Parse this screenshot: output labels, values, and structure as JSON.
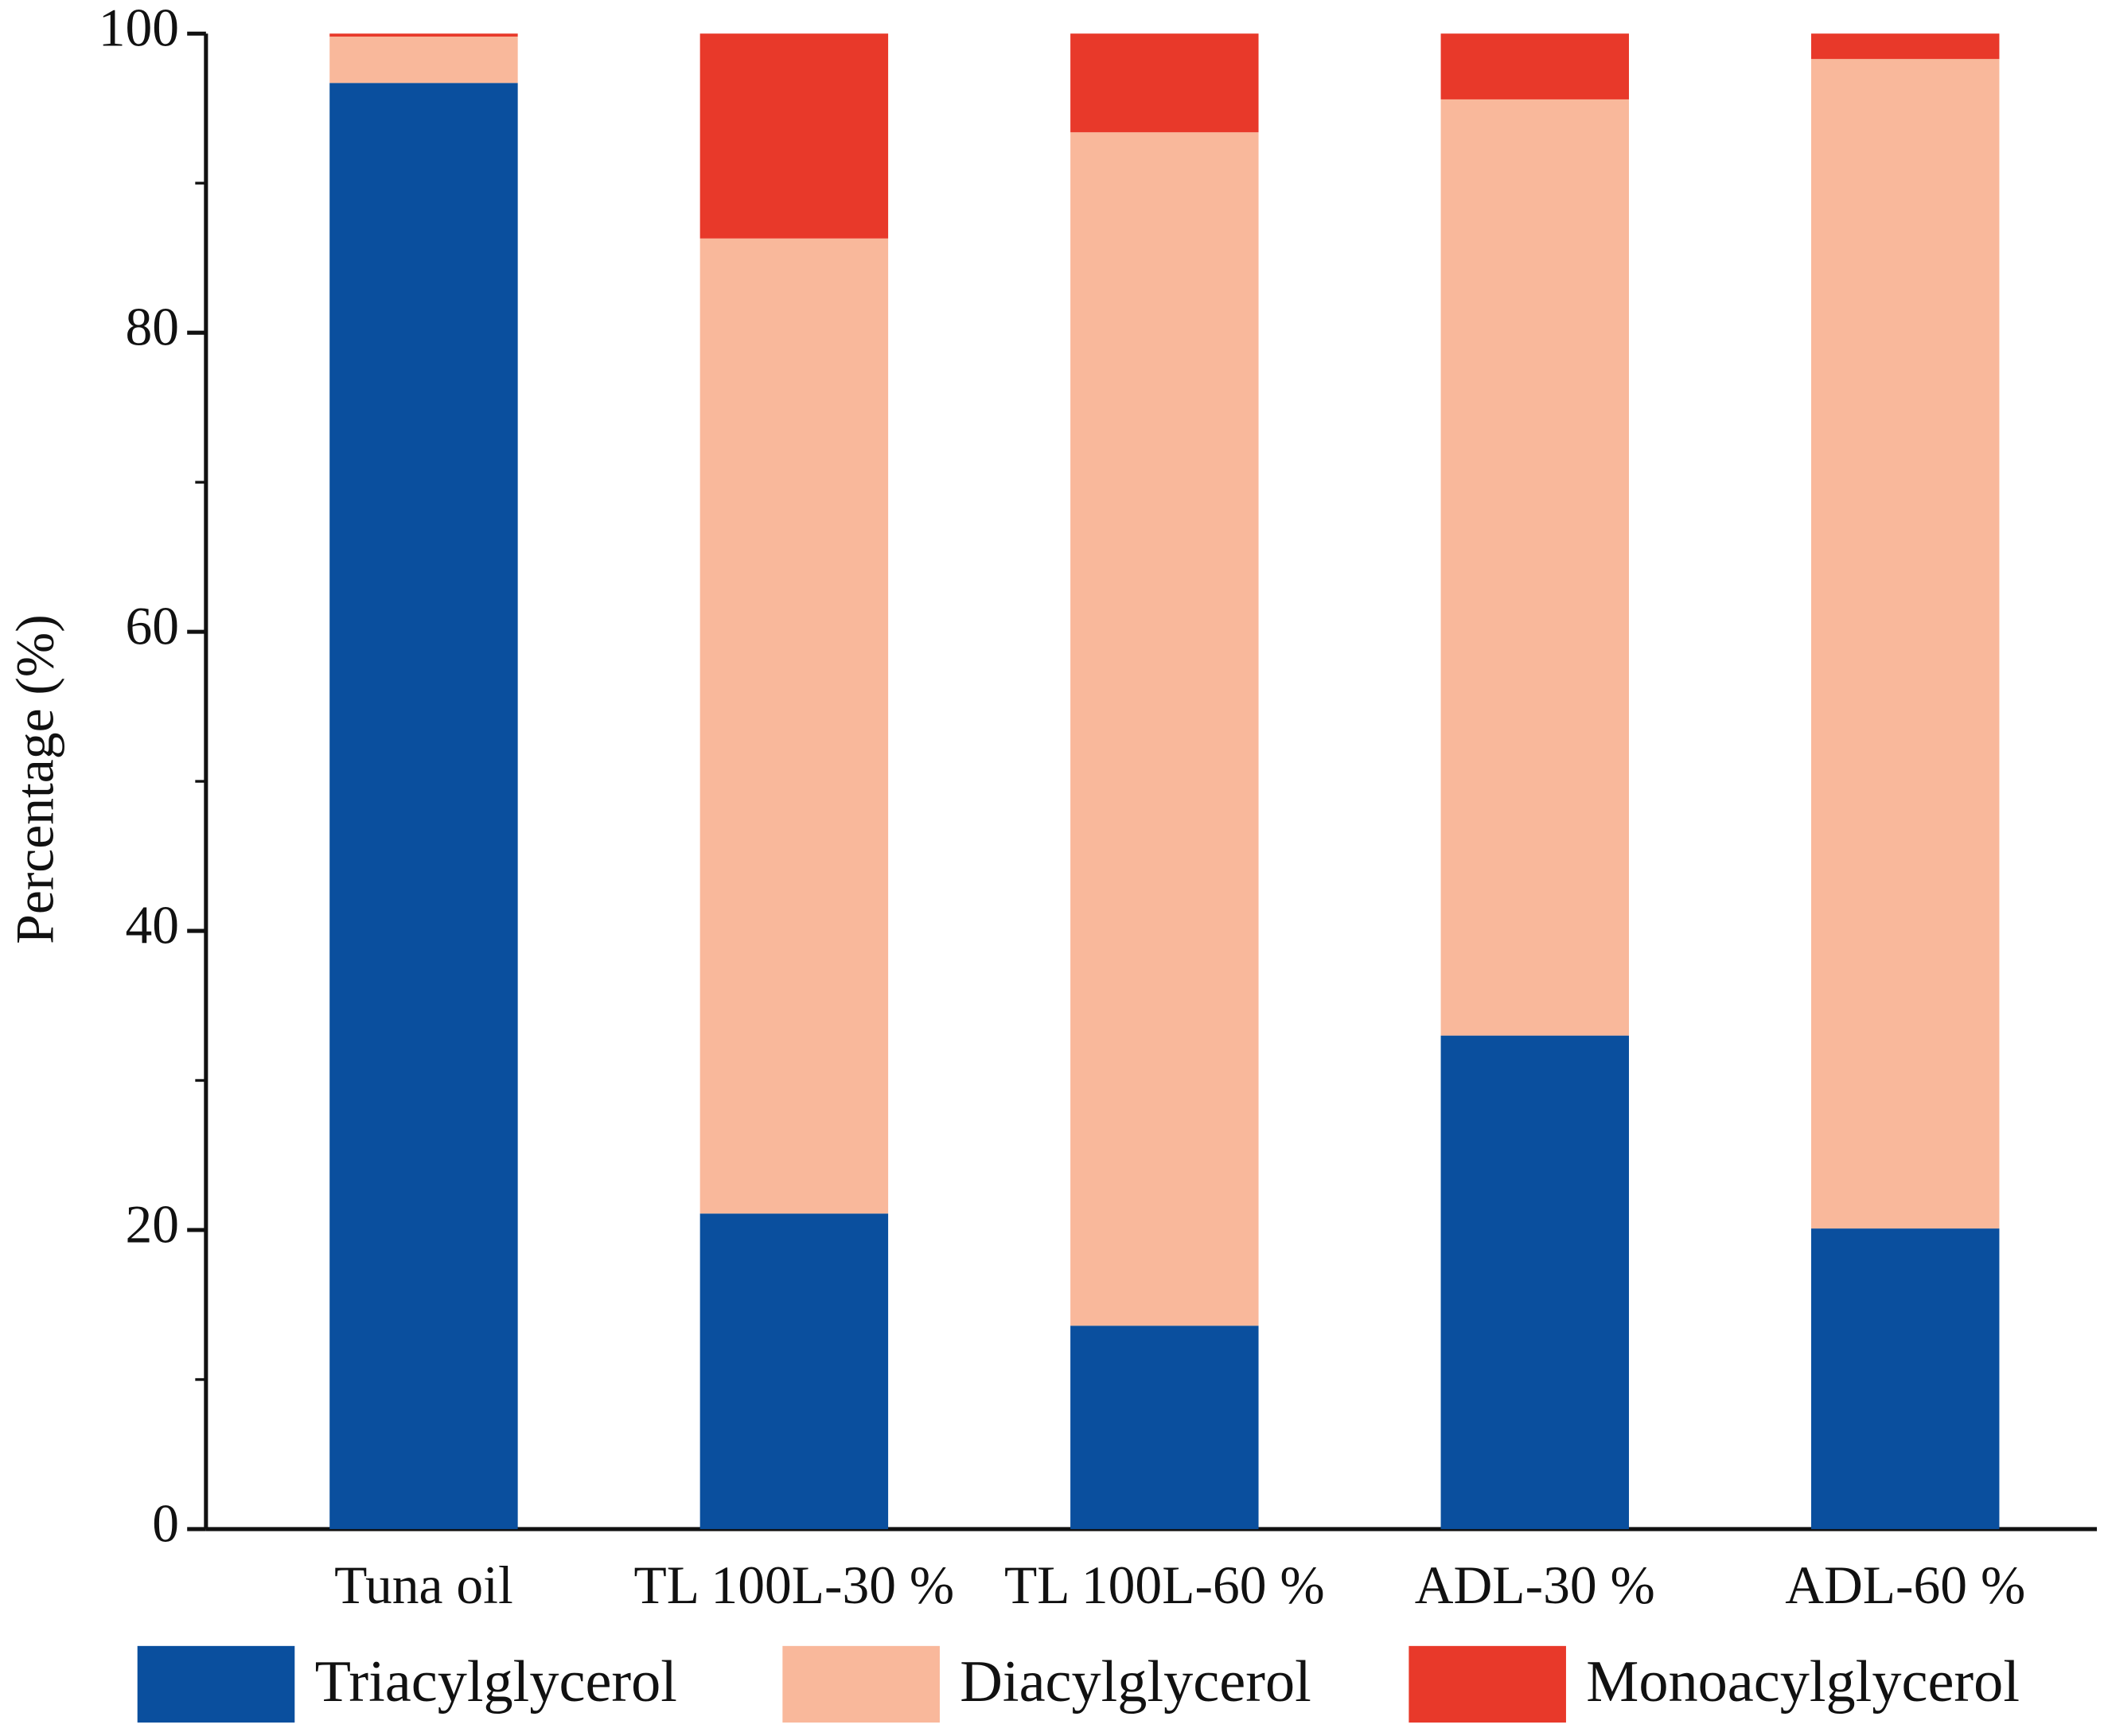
{
  "chart_data": {
    "type": "stacked_bar",
    "y_label": "Percentage (%)",
    "categories": [
      "Tuna oil",
      "TL 100L-30 %",
      "TL 100L-60 %",
      "ADL-30 %",
      "ADL-60 %"
    ],
    "series": [
      {
        "name": "Triacylglycerol",
        "color": "#0a4f9e",
        "values": [
          96.7,
          21.1,
          13.6,
          33.0,
          20.1
        ]
      },
      {
        "name": "Diacylglycerol",
        "color": "#f9b89b",
        "values": [
          3.1,
          65.2,
          79.8,
          62.6,
          78.2
        ]
      },
      {
        "name": "Monoacylglycerol",
        "color": "#e8392a",
        "values": [
          0.2,
          13.7,
          6.6,
          4.4,
          1.7
        ]
      }
    ],
    "ylim": [
      0,
      100
    ],
    "yticks": [
      0,
      20,
      40,
      60,
      80,
      100
    ]
  }
}
